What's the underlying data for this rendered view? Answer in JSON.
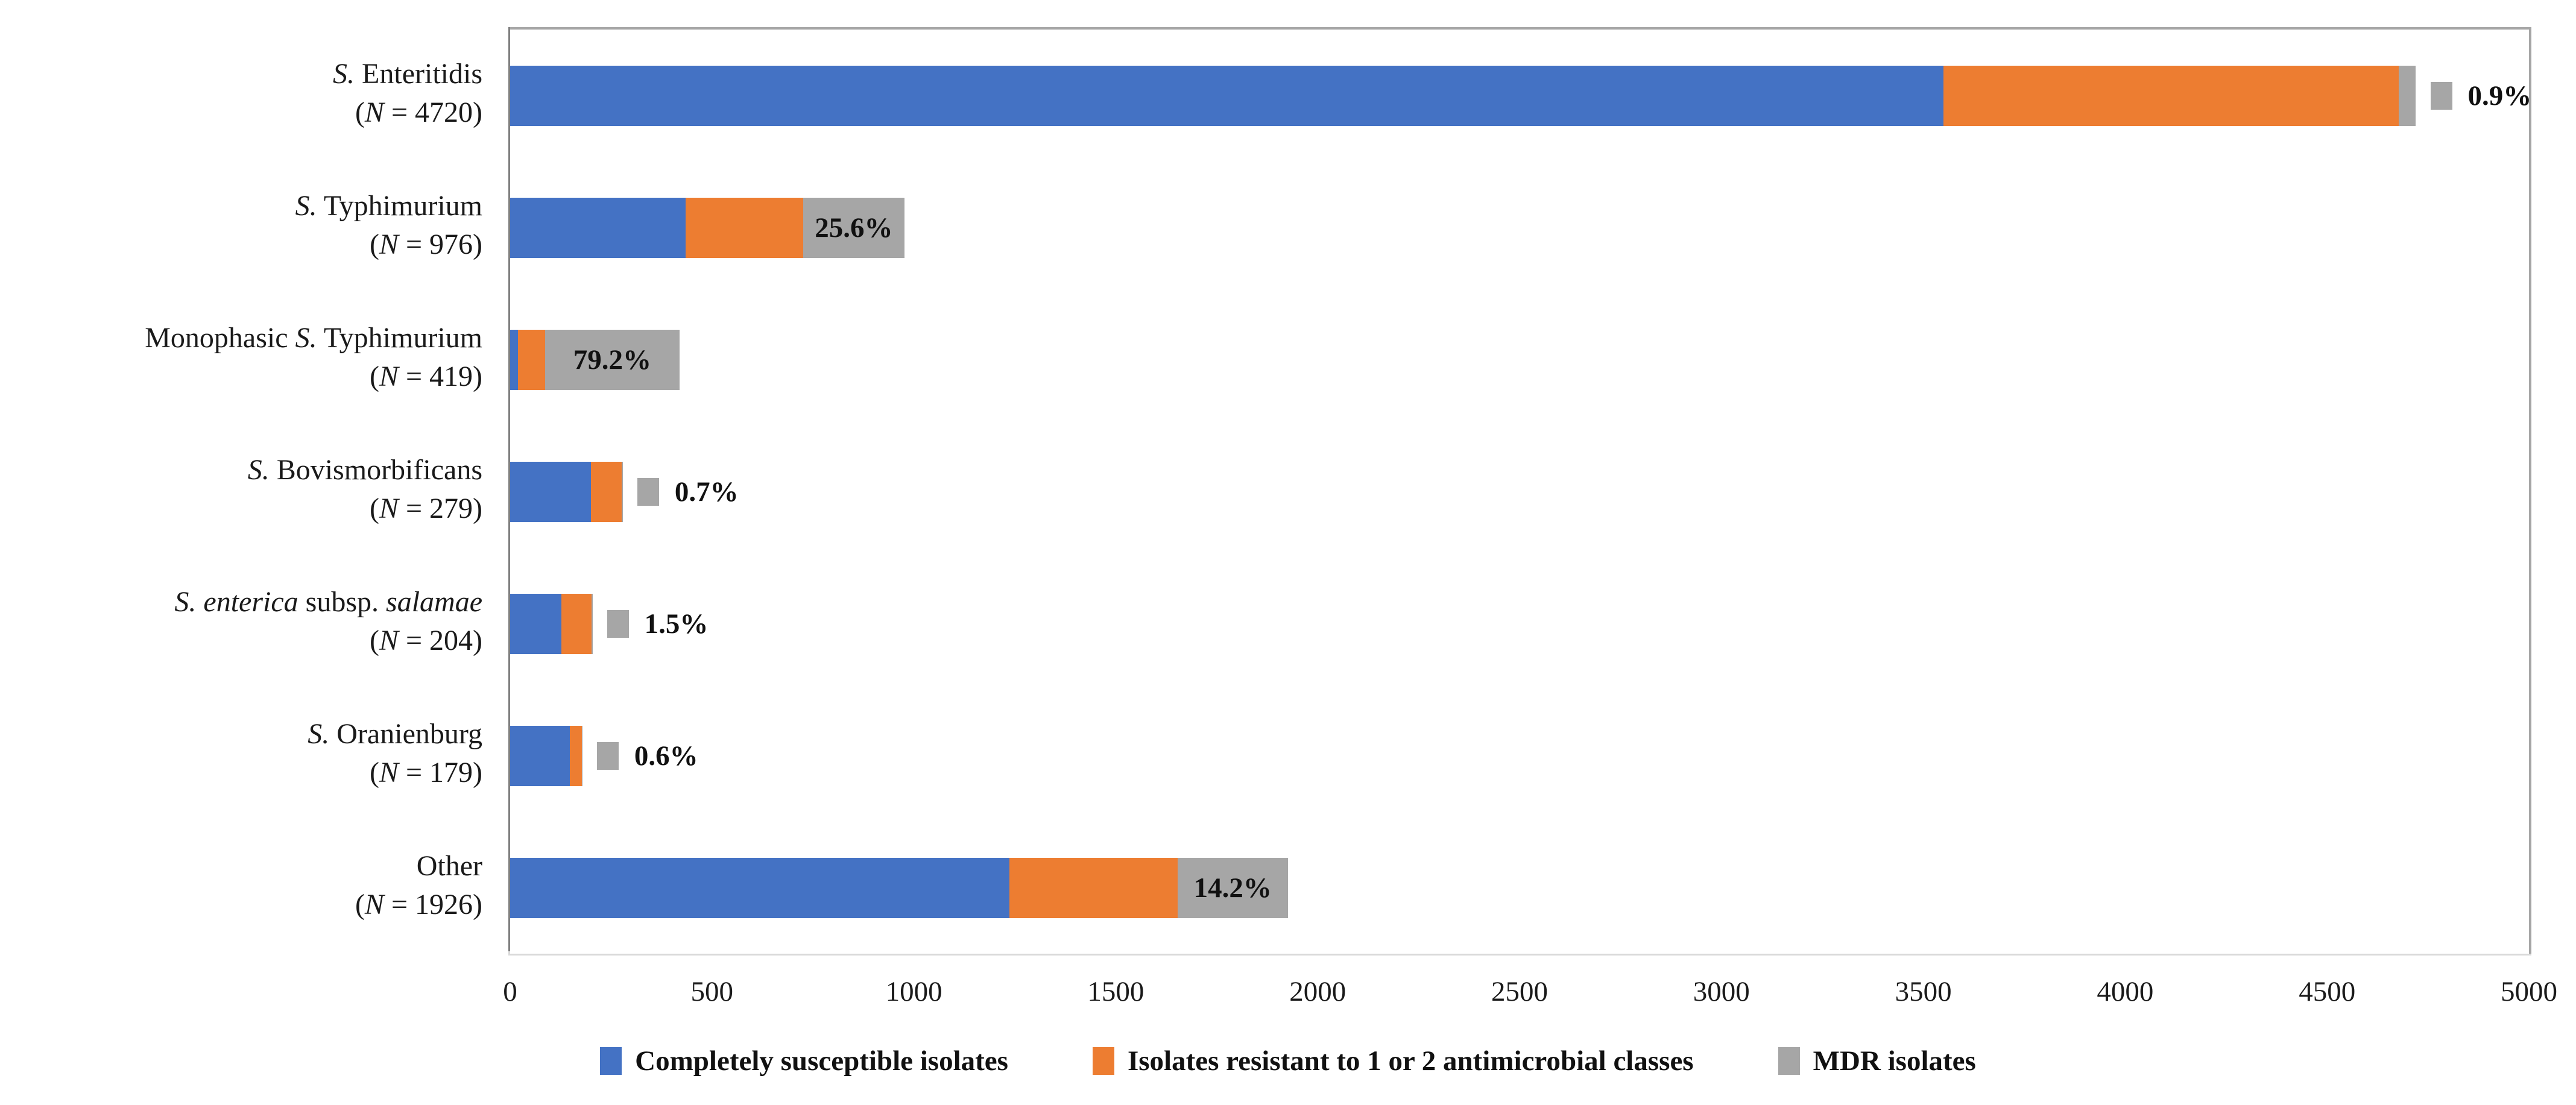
{
  "figure": {
    "background": "#ffffff",
    "colors": {
      "susceptible": "#4472C4",
      "resistant": "#ED7D31",
      "mdr": "#A6A6A6"
    },
    "icons": {
      "legend_key": "color-swatch-square",
      "mdr_label_key": "gray-swatch-square"
    }
  },
  "chart_data": {
    "type": "bar",
    "orientation": "horizontal",
    "stacked": true,
    "title": "",
    "xlabel": "",
    "ylabel": "",
    "xlim": [
      0,
      5000
    ],
    "x_tick_step": 500,
    "x_ticks": [
      "0",
      "500",
      "1000",
      "1500",
      "2000",
      "2500",
      "3000",
      "3500",
      "4000",
      "4500",
      "5000"
    ],
    "grid": false,
    "legend_position": "bottom",
    "categories": [
      "S. Enteritidis (N = 4720)",
      "S. Typhimurium (N = 976)",
      "Monophasic S. Typhimurium (N = 419)",
      "S. Bovismorbificans (N = 279)",
      "S. enterica subsp. salamae (N = 204)",
      "S. Oranienburg (N = 179)",
      "Other (N = 1926)"
    ],
    "series": [
      {
        "name": "Completely susceptible isolates",
        "color": "#4472C4",
        "values": [
          3550,
          434,
          20,
          200,
          127,
          148,
          1236
        ]
      },
      {
        "name": "Isolates resistant to 1 or 2 antimicrobial classes",
        "color": "#ED7D31",
        "values": [
          1128,
          292,
          67,
          77,
          74,
          30,
          417
        ]
      },
      {
        "name": "MDR isolates",
        "color": "#A6A6A6",
        "values": [
          42,
          250,
          332,
          2,
          3,
          1,
          273
        ]
      }
    ],
    "totals": [
      4720,
      976,
      419,
      279,
      204,
      179,
      1926
    ],
    "mdr_percent_labels": [
      "0.9%",
      "25.6%",
      "79.2%",
      "0.7%",
      "1.5%",
      "0.6%",
      "14.2%"
    ],
    "rows": [
      {
        "name_parts": [
          {
            "t": "S.",
            "i": true
          },
          {
            "t": " Enteritidis",
            "i": false
          }
        ],
        "n_value": "4720",
        "values": [
          3550,
          1128,
          42
        ],
        "mdr_label": "0.9%",
        "mdr_label_position": "outside"
      },
      {
        "name_parts": [
          {
            "t": "S.",
            "i": true
          },
          {
            "t": " Typhimurium",
            "i": false
          }
        ],
        "n_value": "976",
        "values": [
          434,
          292,
          250
        ],
        "mdr_label": "25.6%",
        "mdr_label_position": "inside"
      },
      {
        "name_parts": [
          {
            "t": "Monophasic ",
            "i": false
          },
          {
            "t": "S.",
            "i": true
          },
          {
            "t": " Typhimurium",
            "i": false
          }
        ],
        "n_value": "419",
        "values": [
          20,
          67,
          332
        ],
        "mdr_label": "79.2%",
        "mdr_label_position": "inside"
      },
      {
        "name_parts": [
          {
            "t": "S.",
            "i": true
          },
          {
            "t": " Bovismorbificans",
            "i": false
          }
        ],
        "n_value": "279",
        "values": [
          200,
          77,
          2
        ],
        "mdr_label": "0.7%",
        "mdr_label_position": "outside"
      },
      {
        "name_parts": [
          {
            "t": "S. enterica",
            "i": true
          },
          {
            "t": " subsp. ",
            "i": false
          },
          {
            "t": "salamae",
            "i": true
          }
        ],
        "n_value": "204",
        "values": [
          127,
          74,
          3
        ],
        "mdr_label": "1.5%",
        "mdr_label_position": "outside"
      },
      {
        "name_parts": [
          {
            "t": "S.",
            "i": true
          },
          {
            "t": " Oranienburg",
            "i": false
          }
        ],
        "n_value": "179",
        "values": [
          148,
          30,
          1
        ],
        "mdr_label": "0.6%",
        "mdr_label_position": "outside"
      },
      {
        "name_parts": [
          {
            "t": "Other",
            "i": false
          }
        ],
        "n_value": "1926",
        "values": [
          1236,
          417,
          273
        ],
        "mdr_label": "14.2%",
        "mdr_label_position": "inside"
      }
    ],
    "n_label_prefix": "(",
    "n_label_var": "N",
    "n_label_equals": " = ",
    "n_label_suffix": ")"
  },
  "legend": {
    "items": [
      {
        "label": "Completely susceptible isolates",
        "color": "#4472C4"
      },
      {
        "label": "Isolates resistant to 1 or 2 antimicrobial classes",
        "color": "#ED7D31"
      },
      {
        "label": "MDR isolates",
        "color": "#A6A6A6"
      }
    ]
  }
}
